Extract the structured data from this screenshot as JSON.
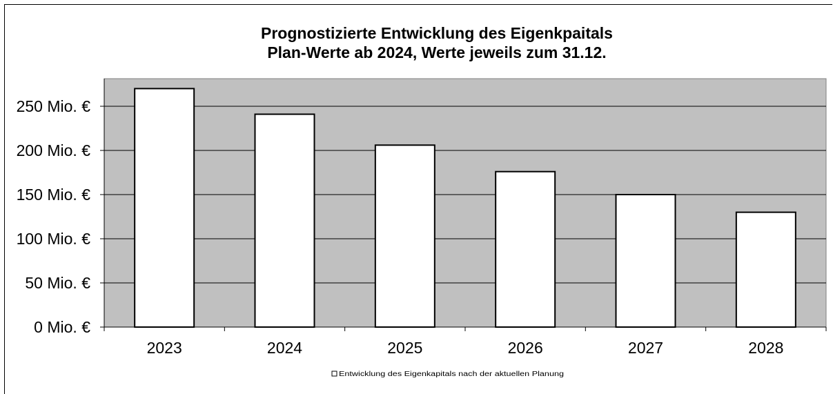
{
  "chart_data": {
    "type": "bar",
    "title": "Prognostizierte Entwicklung des Eigenkpaitals",
    "subtitle": "Plan-Werte ab 2024, Werte jeweils zum 31.12.",
    "categories": [
      "2023",
      "2024",
      "2025",
      "2026",
      "2027",
      "2028"
    ],
    "series": [
      {
        "name": "Entwicklung des Eigenkapitals nach der aktuellen Planung",
        "values": [
          270,
          241,
          206,
          176,
          150,
          130
        ]
      }
    ],
    "ylim": [
      0,
      250
    ],
    "ytick_values": [
      0,
      50,
      100,
      150,
      200,
      250
    ],
    "ytick_labels": [
      "0 Mio. €",
      "50 Mio. €",
      "100 Mio. €",
      "150 Mio. €",
      "200 Mio. €",
      "250 Mio. €"
    ],
    "grid": true,
    "legend_position": "bottom",
    "colors": {
      "plot_background": "#c0c0c0",
      "bar_fill": "#ffffff",
      "bar_stroke": "#000000",
      "gridline": "#000000"
    }
  }
}
